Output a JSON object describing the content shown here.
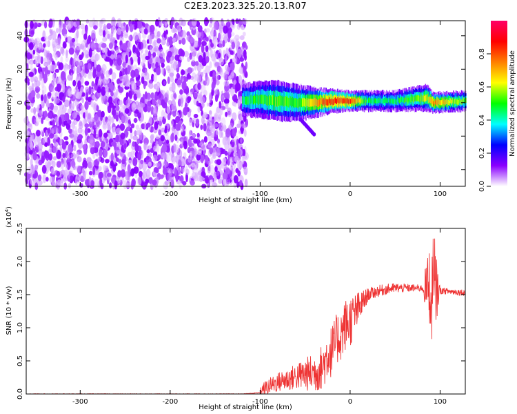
{
  "title": "C2E3.2023.325.20.13.R07",
  "chart_data": [
    {
      "type": "heatmap",
      "xlabel": "Height of straight line (km)",
      "ylabel": "Frequency (Hz)",
      "xlim": [
        -360,
        128
      ],
      "ylim": [
        -50,
        49
      ],
      "xticks": [
        -300,
        -200,
        -100,
        0,
        100
      ],
      "yticks": [
        -40,
        -20,
        0,
        20,
        40
      ],
      "grid": false,
      "colorbar": {
        "label": "Normalized spectral amplitude",
        "range": [
          0,
          1
        ],
        "ticks": [
          0.0,
          0.2,
          0.4,
          0.6,
          0.8
        ],
        "colormap": [
          "#ffffff",
          "#8a00ff",
          "#0000ff",
          "#00ffff",
          "#00ff00",
          "#ffff00",
          "#ff7f00",
          "#ff0000",
          "#ff0066"
        ]
      },
      "noise_region": {
        "x_range": [
          -360,
          -115
        ],
        "freq_range": [
          -50,
          49
        ],
        "amplitude": [
          0.0,
          0.15
        ]
      },
      "signal_band": [
        {
          "x": -120,
          "f_low": -5,
          "f_high": 8,
          "peak_amp": 0.45
        },
        {
          "x": -100,
          "f_low": -6,
          "f_high": 10,
          "peak_amp": 0.5
        },
        {
          "x": -80,
          "f_low": -8,
          "f_high": 10,
          "peak_amp": 0.55
        },
        {
          "x": -60,
          "f_low": -8,
          "f_high": 8,
          "peak_amp": 0.5
        },
        {
          "x": -40,
          "f_low": -6,
          "f_high": 6,
          "peak_amp": 0.7
        },
        {
          "x": -20,
          "f_low": -3,
          "f_high": 5,
          "peak_amp": 0.85
        },
        {
          "x": 0,
          "f_low": -2,
          "f_high": 4,
          "peak_amp": 0.8
        },
        {
          "x": 20,
          "f_low": -2,
          "f_high": 4,
          "peak_amp": 0.45
        },
        {
          "x": 50,
          "f_low": -2,
          "f_high": 4,
          "peak_amp": 0.45
        },
        {
          "x": 85,
          "f_low": -2,
          "f_high": 8,
          "peak_amp": 0.6
        },
        {
          "x": 92,
          "f_low": -3,
          "f_high": 3,
          "peak_amp": 0.75
        },
        {
          "x": 128,
          "f_low": -2,
          "f_high": 4,
          "peak_amp": 0.5
        }
      ],
      "side_branch": {
        "x": [
          -55,
          -40
        ],
        "f": [
          -10,
          -19
        ]
      }
    },
    {
      "type": "line",
      "xlabel": "Height of straight line (km)",
      "ylabel": "SNR (10 * v/v)",
      "y_multiplier": "(x10^4)",
      "xlim": [
        -360,
        128
      ],
      "ylim": [
        0,
        2.5
      ],
      "xticks": [
        -300,
        -200,
        -100,
        0,
        100
      ],
      "yticks": [
        0.0,
        0.5,
        1.0,
        1.5,
        2.0,
        2.5
      ],
      "grid": false,
      "series": [
        {
          "color": "#ee3333",
          "x": [
            -360,
            -300,
            -200,
            -120,
            -100,
            -95,
            -90,
            -80,
            -70,
            -60,
            -50,
            -40,
            -35,
            -30,
            -25,
            -20,
            -15,
            -10,
            -5,
            0,
            5,
            10,
            15,
            20,
            30,
            40,
            50,
            60,
            70,
            80,
            85,
            88,
            90,
            92,
            94,
            96,
            100,
            110,
            120,
            128
          ],
          "y": [
            0.0,
            0.0,
            0.0,
            0.0,
            0.02,
            0.08,
            0.12,
            0.18,
            0.22,
            0.26,
            0.3,
            0.32,
            0.36,
            0.42,
            0.6,
            0.65,
            0.82,
            0.9,
            1.05,
            1.1,
            1.2,
            1.3,
            1.4,
            1.5,
            1.55,
            1.58,
            1.6,
            1.6,
            1.6,
            1.6,
            1.6,
            1.65,
            1.7,
            1.45,
            1.58,
            1.57,
            1.56,
            1.55,
            1.54,
            1.53
          ]
        }
      ],
      "noise_envelope": [
        {
          "x": -100,
          "amp": 0.1
        },
        {
          "x": -60,
          "amp": 0.2
        },
        {
          "x": -40,
          "amp": 0.3
        },
        {
          "x": -20,
          "amp": 0.4
        },
        {
          "x": 0,
          "amp": 0.4
        },
        {
          "x": 20,
          "amp": 0.1
        },
        {
          "x": 80,
          "amp": 0.05
        },
        {
          "x": 92,
          "amp": 0.9
        },
        {
          "x": 100,
          "amp": 0.05
        }
      ]
    }
  ]
}
